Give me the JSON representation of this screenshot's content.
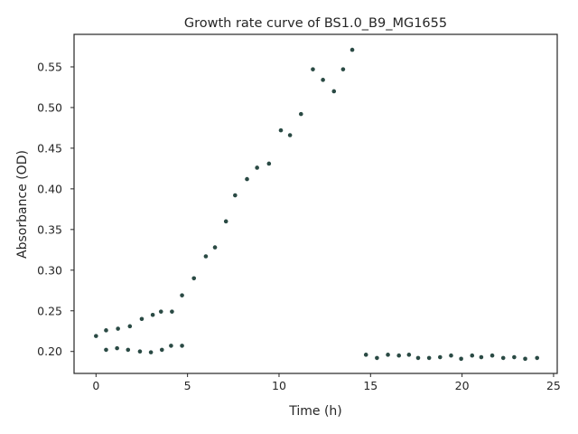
{
  "chart_data": {
    "type": "scatter",
    "title": "Growth rate curve of BS1.0_B9_MG1655",
    "xlabel": "Time (h)",
    "ylabel": "Absorbance (OD)",
    "xlim": [
      -1.2,
      25.2
    ],
    "ylim": [
      0.173,
      0.59
    ],
    "xticks": [
      0,
      5,
      10,
      15,
      20,
      25
    ],
    "yticks": [
      0.2,
      0.25,
      0.3,
      0.35,
      0.4,
      0.45,
      0.5,
      0.55
    ],
    "xtick_labels": [
      "0",
      "5",
      "10",
      "15",
      "20",
      "25"
    ],
    "ytick_labels": [
      "0.20",
      "0.25",
      "0.30",
      "0.35",
      "0.40",
      "0.45",
      "0.50",
      "0.55"
    ],
    "grid": false,
    "legend": "none",
    "marker_color": "#2a4a44",
    "series": [
      {
        "points": [
          [
            0.0,
            0.219
          ],
          [
            0.55,
            0.226
          ],
          [
            1.2,
            0.228
          ],
          [
            1.85,
            0.231
          ],
          [
            2.5,
            0.24
          ],
          [
            3.1,
            0.245
          ],
          [
            3.55,
            0.249
          ],
          [
            4.15,
            0.249
          ],
          [
            4.7,
            0.269
          ],
          [
            5.35,
            0.29
          ],
          [
            6.0,
            0.317
          ],
          [
            6.5,
            0.328
          ],
          [
            7.1,
            0.36
          ],
          [
            7.6,
            0.392
          ],
          [
            8.25,
            0.412
          ],
          [
            8.8,
            0.426
          ],
          [
            9.45,
            0.431
          ],
          [
            10.1,
            0.472
          ],
          [
            10.6,
            0.466
          ],
          [
            11.2,
            0.492
          ],
          [
            11.85,
            0.547
          ],
          [
            12.4,
            0.534
          ],
          [
            13.0,
            0.52
          ],
          [
            13.5,
            0.547
          ],
          [
            14.0,
            0.571
          ],
          [
            14.75,
            0.196
          ],
          [
            15.35,
            0.192
          ],
          [
            15.95,
            0.196
          ],
          [
            16.55,
            0.195
          ],
          [
            17.1,
            0.196
          ],
          [
            17.6,
            0.192
          ],
          [
            18.2,
            0.192
          ],
          [
            18.8,
            0.193
          ],
          [
            19.4,
            0.195
          ],
          [
            19.95,
            0.191
          ],
          [
            20.55,
            0.195
          ],
          [
            21.05,
            0.193
          ],
          [
            21.65,
            0.195
          ],
          [
            22.25,
            0.192
          ],
          [
            22.85,
            0.193
          ],
          [
            23.45,
            0.191
          ],
          [
            24.1,
            0.192
          ],
          [
            0.55,
            0.202
          ],
          [
            1.15,
            0.204
          ],
          [
            1.75,
            0.202
          ],
          [
            2.4,
            0.2
          ],
          [
            3.0,
            0.199
          ],
          [
            3.6,
            0.202
          ],
          [
            4.1,
            0.207
          ],
          [
            4.7,
            0.207
          ]
        ]
      }
    ]
  }
}
